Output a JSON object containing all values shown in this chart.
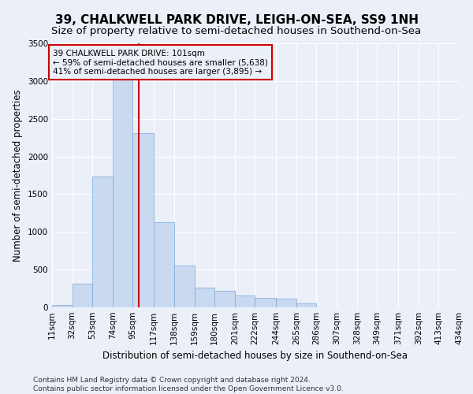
{
  "title": "39, CHALKWELL PARK DRIVE, LEIGH-ON-SEA, SS9 1NH",
  "subtitle": "Size of property relative to semi-detached houses in Southend-on-Sea",
  "xlabel": "Distribution of semi-detached houses by size in Southend-on-Sea",
  "ylabel": "Number of semi-detached properties",
  "footer_line1": "Contains HM Land Registry data © Crown copyright and database right 2024.",
  "footer_line2": "Contains public sector information licensed under the Open Government Licence v3.0.",
  "annotation_title": "39 CHALKWELL PARK DRIVE: 101sqm",
  "annotation_line2": "← 59% of semi-detached houses are smaller (5,638)",
  "annotation_line3": "41% of semi-detached houses are larger (3,895) →",
  "property_size": 101,
  "bar_color": "#c9d9f0",
  "bar_edgecolor": "#7aa8d8",
  "vline_color": "#cc0000",
  "annotation_box_edgecolor": "#cc0000",
  "bin_edges": [
    11,
    32,
    53,
    74,
    95,
    117,
    138,
    159,
    180,
    201,
    222,
    244,
    265,
    286,
    307,
    328,
    349,
    371,
    392,
    413,
    434
  ],
  "bin_labels": [
    "11sqm",
    "32sqm",
    "53sqm",
    "74sqm",
    "95sqm",
    "117sqm",
    "138sqm",
    "159sqm",
    "180sqm",
    "201sqm",
    "222sqm",
    "244sqm",
    "265sqm",
    "286sqm",
    "307sqm",
    "328sqm",
    "349sqm",
    "371sqm",
    "392sqm",
    "413sqm",
    "434sqm"
  ],
  "bar_heights": [
    30,
    310,
    1730,
    3110,
    2310,
    1130,
    555,
    265,
    220,
    155,
    130,
    115,
    50,
    0,
    0,
    0,
    0,
    0,
    0,
    0
  ],
  "ylim": [
    0,
    3500
  ],
  "yticks": [
    0,
    500,
    1000,
    1500,
    2000,
    2500,
    3000,
    3500
  ],
  "background_color": "#eaeff8",
  "grid_color": "#ffffff",
  "title_fontsize": 11,
  "subtitle_fontsize": 9.5,
  "axis_label_fontsize": 8.5,
  "tick_fontsize": 7.5,
  "footer_fontsize": 6.5,
  "annotation_fontsize": 7.5
}
